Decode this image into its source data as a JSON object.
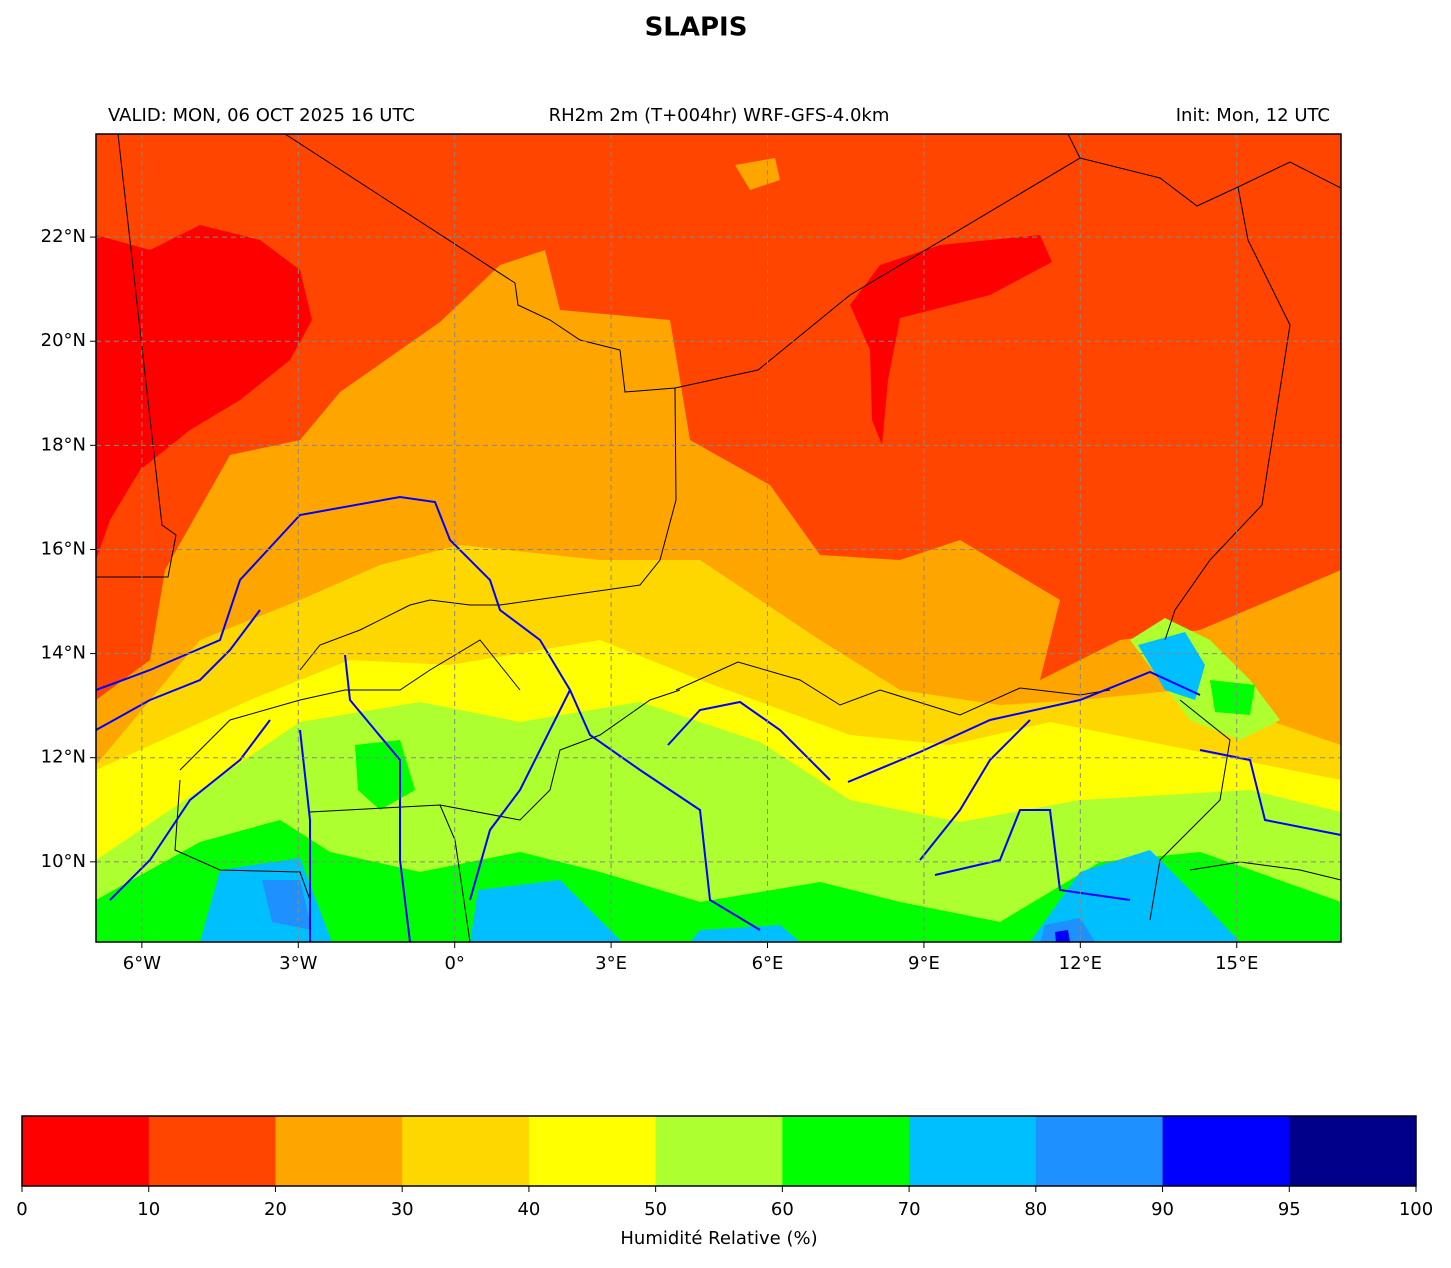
{
  "header": {
    "title": "SLAPIS",
    "valid": "VALID: MON, 06 OCT 2025 16 UTC",
    "field": "RH2m 2m (T+004hr) WRF-GFS-4.0km",
    "init": "Init: Mon, 12 UTC"
  },
  "map": {
    "xlim": [
      -6.88,
      17.0
    ],
    "ylim": [
      8.46,
      23.98
    ],
    "grid": true,
    "xticks": [
      {
        "value": -6,
        "label": "6°W"
      },
      {
        "value": -3,
        "label": "3°W"
      },
      {
        "value": 0,
        "label": "0°"
      },
      {
        "value": 3,
        "label": "3°E"
      },
      {
        "value": 6,
        "label": "6°E"
      },
      {
        "value": 9,
        "label": "9°E"
      },
      {
        "value": 12,
        "label": "12°E"
      },
      {
        "value": 15,
        "label": "15°E"
      }
    ],
    "yticks": [
      {
        "value": 10,
        "label": "10°N"
      },
      {
        "value": 12,
        "label": "12°N"
      },
      {
        "value": 14,
        "label": "14°N"
      },
      {
        "value": 16,
        "label": "16°N"
      },
      {
        "value": 18,
        "label": "18°N"
      },
      {
        "value": 20,
        "label": "20°N"
      },
      {
        "value": 22,
        "label": "22°N"
      }
    ]
  },
  "colorbar": {
    "label": "Humidité Relative (%)",
    "levels": [
      0,
      10,
      20,
      30,
      40,
      50,
      60,
      70,
      80,
      90,
      95,
      100
    ],
    "colors": [
      "#ff0000",
      "#ff4500",
      "#ffa500",
      "#ffd700",
      "#ffff00",
      "#adff2f",
      "#00ff00",
      "#00bfff",
      "#1e90ff",
      "#0000ff",
      "#00008b"
    ]
  }
}
